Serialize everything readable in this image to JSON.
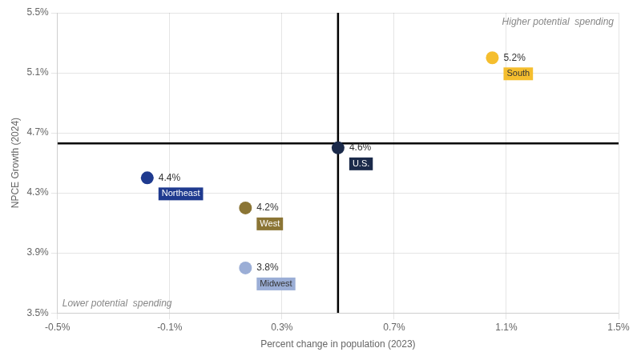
{
  "chart_data": {
    "type": "scatter",
    "xlabel": "Percent change in population (2023)",
    "ylabel": "NPCE Growth (2024)",
    "xlim": [
      -0.5,
      1.5
    ],
    "ylim": [
      3.5,
      5.5
    ],
    "xticks": [
      {
        "value": -0.5,
        "label": "-0.5%"
      },
      {
        "value": -0.1,
        "label": "-0.1%"
      },
      {
        "value": 0.3,
        "label": "0.3%"
      },
      {
        "value": 0.7,
        "label": "0.7%"
      },
      {
        "value": 1.1,
        "label": "1.1%"
      },
      {
        "value": 1.5,
        "label": "1.5%"
      }
    ],
    "yticks": [
      {
        "value": 3.5,
        "label": "3.5%"
      },
      {
        "value": 3.9,
        "label": "3.9%"
      },
      {
        "value": 4.3,
        "label": "4.3%"
      },
      {
        "value": 4.7,
        "label": "4.7%"
      },
      {
        "value": 5.1,
        "label": "5.1%"
      },
      {
        "value": 5.5,
        "label": "5.5%"
      }
    ],
    "grid": true,
    "data_labels": true,
    "series": [
      {
        "name": "South",
        "color": "#F5BE2E",
        "x": [
          1.05
        ],
        "values": [
          5.2
        ],
        "value_labels": [
          "5.2%"
        ]
      },
      {
        "name": "U.S.",
        "color": "#1B2A4A",
        "x": [
          0.5
        ],
        "values": [
          4.6
        ],
        "value_labels": [
          "4.6%"
        ]
      },
      {
        "name": "Northeast",
        "color": "#1F3A8F",
        "x": [
          -0.18
        ],
        "values": [
          4.4
        ],
        "value_labels": [
          "4.4%"
        ]
      },
      {
        "name": "West",
        "color": "#8B7535",
        "x": [
          0.17
        ],
        "values": [
          4.2
        ],
        "value_labels": [
          "4.2%"
        ]
      },
      {
        "name": "Midwest",
        "color": "#9BAED6",
        "x": [
          0.17
        ],
        "values": [
          3.8
        ],
        "value_labels": [
          "3.8%"
        ]
      }
    ],
    "reference_lines": {
      "x": 0.5,
      "y": 4.63
    },
    "annotations": [
      "Higher potential  spending",
      "Lower potential  spending"
    ]
  }
}
